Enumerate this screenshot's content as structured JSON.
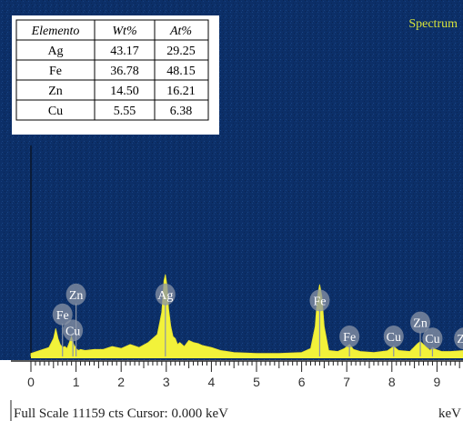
{
  "chart_data": {
    "type": "area",
    "title": "Spectrum",
    "xlabel": "keV",
    "xlim": [
      0,
      9.6
    ],
    "ylim": [
      0,
      11159
    ],
    "x_ticks": [
      0,
      1,
      2,
      3,
      4,
      5,
      6,
      7,
      8,
      9
    ],
    "colors": {
      "background": "#0c2f68",
      "spectrum": "#f2f23a",
      "peak_marker": "#8a94a6",
      "table_bg": "#ffffff"
    },
    "table": {
      "headers": [
        "Elemento",
        "Wt%",
        "At%"
      ],
      "rows": [
        [
          "Ag",
          "43.17",
          "29.25"
        ],
        [
          "Fe",
          "36.78",
          "48.15"
        ],
        [
          "Zn",
          "14.50",
          "16.21"
        ],
        [
          "Cu",
          "5.55",
          "6.38"
        ]
      ]
    },
    "peak_labels": [
      {
        "label": "Zn",
        "x": 1.0,
        "y": 3100
      },
      {
        "label": "Fe",
        "x": 0.7,
        "y": 2100
      },
      {
        "label": "Cu",
        "x": 0.93,
        "y": 1300
      },
      {
        "label": "Ag",
        "x": 2.98,
        "y": 3100
      },
      {
        "label": "Fe",
        "x": 6.4,
        "y": 2800
      },
      {
        "label": "Fe",
        "x": 7.06,
        "y": 1000
      },
      {
        "label": "Cu",
        "x": 8.04,
        "y": 1000
      },
      {
        "label": "Zn",
        "x": 8.63,
        "y": 1700
      },
      {
        "label": "Cu",
        "x": 8.9,
        "y": 900
      },
      {
        "label": "Zn",
        "x": 9.6,
        "y": 900
      }
    ],
    "spectrum": {
      "x": [
        0,
        0.2,
        0.4,
        0.5,
        0.55,
        0.6,
        0.65,
        0.7,
        0.75,
        0.8,
        0.85,
        0.9,
        0.95,
        1.0,
        1.05,
        1.1,
        1.2,
        1.4,
        1.6,
        1.8,
        2.0,
        2.2,
        2.4,
        2.6,
        2.8,
        2.9,
        2.95,
        2.98,
        3.02,
        3.05,
        3.1,
        3.15,
        3.2,
        3.25,
        3.3,
        3.4,
        3.5,
        3.6,
        3.7,
        3.8,
        3.9,
        4.0,
        4.2,
        4.5,
        5.0,
        5.5,
        6.0,
        6.2,
        6.3,
        6.35,
        6.4,
        6.45,
        6.5,
        6.6,
        6.8,
        6.95,
        7.06,
        7.15,
        7.3,
        7.6,
        7.9,
        8.04,
        8.15,
        8.4,
        8.55,
        8.63,
        8.7,
        8.85,
        8.9,
        8.97,
        9.1,
        9.3,
        9.6
      ],
      "y": [
        150,
        300,
        450,
        900,
        1400,
        900,
        600,
        450,
        500,
        400,
        700,
        1000,
        600,
        400,
        300,
        350,
        300,
        350,
        350,
        500,
        400,
        600,
        450,
        700,
        1100,
        2200,
        3800,
        4100,
        3500,
        2400,
        1500,
        1000,
        900,
        600,
        700,
        500,
        800,
        700,
        650,
        550,
        500,
        450,
        300,
        200,
        150,
        150,
        200,
        400,
        1500,
        3000,
        3600,
        3000,
        1500,
        300,
        250,
        400,
        600,
        350,
        250,
        200,
        280,
        500,
        300,
        250,
        600,
        750,
        600,
        300,
        450,
        350,
        250,
        250,
        300
      ]
    },
    "footer": {
      "left": "Full Scale 11159 cts Cursor: 0.000 keV",
      "right": "keV"
    }
  }
}
